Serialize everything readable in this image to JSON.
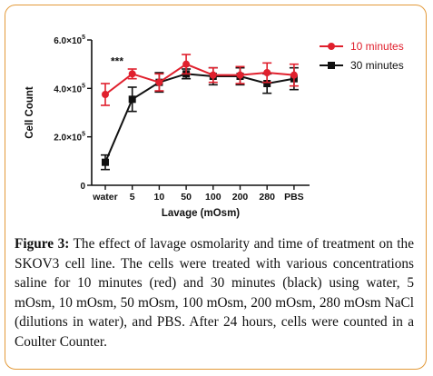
{
  "chart_data": {
    "type": "line",
    "xlabel": "Lavage (mOsm)",
    "ylabel": "Cell Count",
    "categories": [
      "water",
      "5",
      "10",
      "50",
      "100",
      "200",
      "280",
      "PBS"
    ],
    "y_ticks": [
      {
        "value": 0,
        "label": "0"
      },
      {
        "value": 200000,
        "label": "2.0×10⁵"
      },
      {
        "value": 400000,
        "label": "4.0×10⁵"
      },
      {
        "value": 600000,
        "label": "6.0×10⁵"
      }
    ],
    "ylim": [
      0,
      600000
    ],
    "grid": false,
    "legend_position": "top-right",
    "annotation": "***",
    "series": [
      {
        "name": "10 minutes",
        "color": "#e0202d",
        "values": [
          375000,
          460000,
          425000,
          500000,
          455000,
          455000,
          465000,
          455000
        ],
        "errors": [
          45000,
          20000,
          35000,
          40000,
          30000,
          35000,
          40000,
          45000
        ]
      },
      {
        "name": "30 minutes",
        "color": "#111111",
        "values": [
          95000,
          355000,
          425000,
          460000,
          450000,
          450000,
          420000,
          440000
        ],
        "errors": [
          30000,
          50000,
          40000,
          20000,
          35000,
          35000,
          40000,
          45000
        ]
      }
    ]
  },
  "caption": {
    "label": "Figure 3:",
    "text": " The effect of lavage osmolarity and time of treatment on the SKOV3 cell line. The cells were treated with various concentrations saline for 10 minutes (red) and 30 minutes (black) using water, 5 mOsm, 10 mOsm, 50 mOsm, 100 mOsm, 200 mOsm, 280 mOsm NaCl (dilutions in water), and PBS. After 24 hours, cells were counted in a Coulter Counter."
  }
}
